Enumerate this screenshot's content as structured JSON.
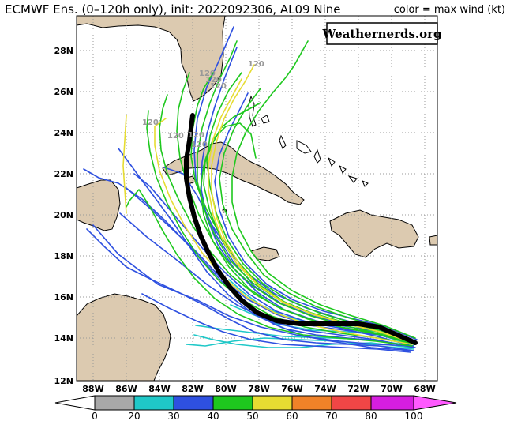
{
  "header": {
    "title": "ECMWF Ens. (0–120h only), init: 2022092306, AL09 Nine",
    "color_note": "color = max wind (kt)"
  },
  "brand": {
    "text": "Weathernerds.org"
  },
  "map": {
    "lat_labels": [
      "28N",
      "26N",
      "24N",
      "22N",
      "20N",
      "18N",
      "16N",
      "14N",
      "12N"
    ],
    "lon_labels": [
      "88W",
      "86W",
      "84W",
      "82W",
      "80W",
      "78W",
      "76W",
      "74W",
      "72W",
      "70W",
      "68W"
    ],
    "hour_labels": [
      "120",
      "120",
      "120",
      "120",
      "120",
      "120",
      "120",
      "120"
    ],
    "colors": {
      "land": "#dccab0",
      "ocean": "#ffffff",
      "grid": "#999999",
      "mean_track": "#000000"
    }
  },
  "colorbar": {
    "ticks": [
      "0",
      "20",
      "30",
      "40",
      "50",
      "60",
      "70",
      "80",
      "100"
    ],
    "colors": [
      "#ffffff",
      "#a8a8a8",
      "#1fc8c8",
      "#2e50e0",
      "#1ec81e",
      "#e6dc32",
      "#f08228",
      "#f04646",
      "#ff5aff"
    ]
  }
}
